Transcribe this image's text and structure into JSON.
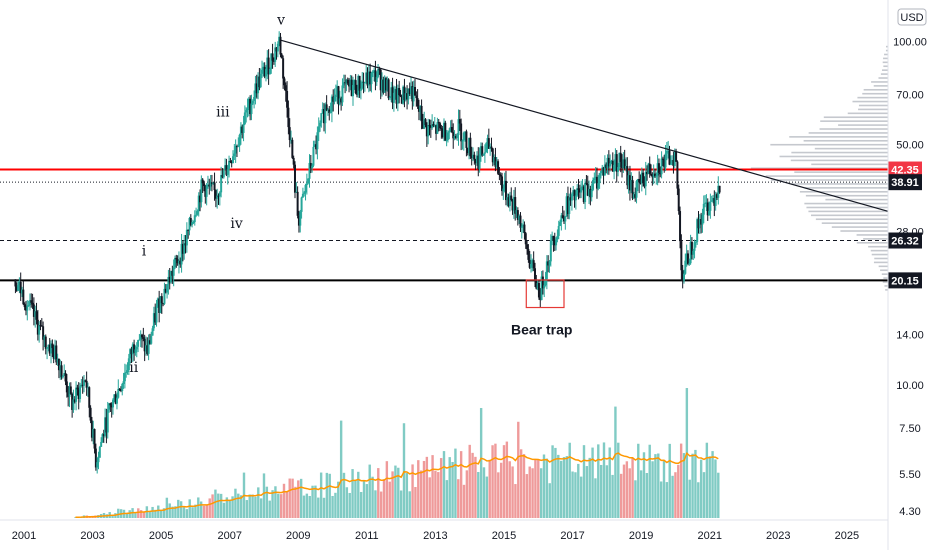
{
  "chart_data": {
    "type": "candlestick",
    "currency": "USD",
    "y_scale": "log",
    "ylim": [
      4.1,
      125
    ],
    "xlim": [
      2000.3,
      2026.2
    ],
    "y_ticks": [
      4.3,
      5.5,
      7.5,
      10.0,
      14.0,
      20.0,
      28.0,
      50.0,
      70.0,
      100.0
    ],
    "y_tick_labels": [
      "4.30",
      "5.50",
      "7.50",
      "10.00",
      "14.00",
      "",
      "28.00",
      "50.00",
      "70.00",
      "100.00"
    ],
    "x_ticks": [
      2001,
      2003,
      2005,
      2007,
      2009,
      2011,
      2013,
      2015,
      2017,
      2019,
      2021,
      2023,
      2025
    ],
    "x_tick_labels": [
      "2001",
      "2003",
      "2005",
      "2007",
      "2009",
      "2011",
      "2013",
      "2015",
      "2017",
      "2019",
      "2021",
      "2023",
      "2025"
    ],
    "price_path": [
      [
        2000.75,
        20.3
      ],
      [
        2001.2,
        16.5
      ],
      [
        2001.6,
        13.5
      ],
      [
        2002.0,
        12.0
      ],
      [
        2002.4,
        8.8
      ],
      [
        2002.8,
        10.5
      ],
      [
        2003.1,
        6.0
      ],
      [
        2003.5,
        8.5
      ],
      [
        2003.9,
        10.5
      ],
      [
        2004.3,
        14.0
      ],
      [
        2004.6,
        12.5
      ],
      [
        2004.9,
        17.0
      ],
      [
        2005.3,
        21.0
      ],
      [
        2005.7,
        26.0
      ],
      [
        2006.2,
        38.0
      ],
      [
        2006.6,
        36.0
      ],
      [
        2007.0,
        45.0
      ],
      [
        2007.4,
        58.0
      ],
      [
        2007.8,
        75.0
      ],
      [
        2008.2,
        88.0
      ],
      [
        2008.45,
        101.0
      ],
      [
        2008.75,
        55.0
      ],
      [
        2009.0,
        30.0
      ],
      [
        2009.4,
        45.0
      ],
      [
        2009.8,
        65.0
      ],
      [
        2010.3,
        72.0
      ],
      [
        2010.8,
        75.0
      ],
      [
        2011.3,
        80.0
      ],
      [
        2011.8,
        68.0
      ],
      [
        2012.3,
        72.0
      ],
      [
        2012.7,
        56.0
      ],
      [
        2013.2,
        55.0
      ],
      [
        2013.7,
        56.0
      ],
      [
        2014.2,
        45.0
      ],
      [
        2014.6,
        50.0
      ],
      [
        2015.0,
        37.0
      ],
      [
        2015.4,
        32.0
      ],
      [
        2015.8,
        22.0
      ],
      [
        2016.05,
        18.5
      ],
      [
        2016.4,
        26.0
      ],
      [
        2016.8,
        33.0
      ],
      [
        2017.2,
        36.0
      ],
      [
        2017.6,
        38.0
      ],
      [
        2018.0,
        44.0
      ],
      [
        2018.4,
        45.0
      ],
      [
        2018.8,
        36.0
      ],
      [
        2019.2,
        42.0
      ],
      [
        2019.6,
        44.0
      ],
      [
        2020.0,
        47.0
      ],
      [
        2020.2,
        20.5
      ],
      [
        2020.5,
        26.0
      ],
      [
        2020.8,
        32.0
      ],
      [
        2021.1,
        35.0
      ],
      [
        2021.3,
        39.0
      ]
    ],
    "horizontal_levels": [
      {
        "value": 42.35,
        "label": "42.35",
        "style": "solid",
        "color": "#f23645",
        "line_color": "#ff0000"
      },
      {
        "value": 38.91,
        "label": "38.91",
        "style": "dotted",
        "color": "#131722",
        "line_color": "#131722"
      },
      {
        "value": 26.32,
        "label": "26.32",
        "style": "dashed",
        "color": "#131722",
        "line_color": "#131722"
      },
      {
        "value": 20.15,
        "label": "20.15",
        "style": "solid",
        "color": "#131722",
        "line_color": "#000000"
      }
    ],
    "trendline": {
      "from": [
        2008.45,
        101.0
      ],
      "to": [
        2026.2,
        32.0
      ]
    },
    "wave_labels": [
      {
        "text": "i",
        "x": 2004.5,
        "y": 23.8
      },
      {
        "text": "ii",
        "x": 2004.2,
        "y": 10.9
      },
      {
        "text": "iii",
        "x": 2006.8,
        "y": 60.5
      },
      {
        "text": "iv",
        "x": 2007.2,
        "y": 28.6
      },
      {
        "text": "v",
        "x": 2008.5,
        "y": 112.0
      }
    ],
    "annotations": [
      {
        "text": "Bear trap",
        "x": 2016.1,
        "y": 14.0
      },
      {
        "type": "box",
        "x0": 2015.65,
        "x1": 2016.75,
        "y0": 16.8,
        "y1": 20.2,
        "color": "#e53935"
      }
    ],
    "volume": {
      "up_color": "#80cbc4",
      "down_color": "#ef9a9a",
      "ma_color": "#ff9800",
      "max_ratio": 1.0
    },
    "volume_profile_color": "#b2b5be",
    "colors": {
      "up": "#26a69a",
      "down": "#131722",
      "line": "#131722"
    }
  }
}
